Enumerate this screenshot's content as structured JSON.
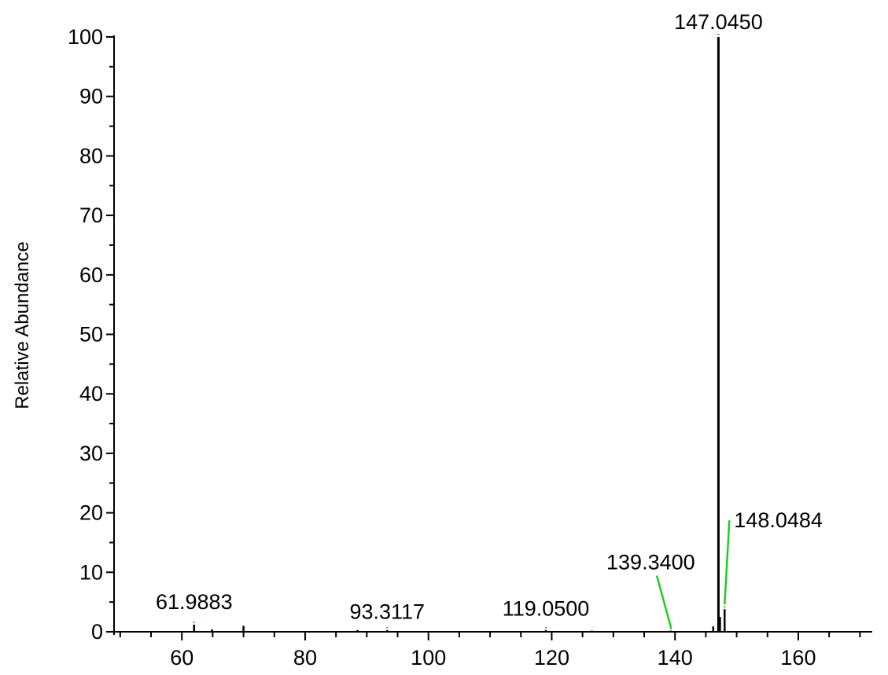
{
  "chart_data": {
    "type": "bar",
    "title": "",
    "xlabel": "",
    "ylabel": "Relative Abundance",
    "xlim": [
      49,
      172
    ],
    "ylim": [
      0,
      100
    ],
    "x_ticks": [
      60,
      80,
      100,
      120,
      140,
      160
    ],
    "y_ticks": [
      0,
      10,
      20,
      30,
      40,
      50,
      60,
      70,
      80,
      90,
      100
    ],
    "x_minor_step": 5,
    "y_minor_step": 5,
    "grid": false,
    "legend": "none",
    "series": [
      {
        "values": [
          {
            "x": 61.9883,
            "y": 1.2
          },
          {
            "x": 64.9,
            "y": 0.4
          },
          {
            "x": 70.0,
            "y": 1.0
          },
          {
            "x": 88.5,
            "y": 0.3
          },
          {
            "x": 93.3117,
            "y": 0.3
          },
          {
            "x": 119.05,
            "y": 0.3
          },
          {
            "x": 126.5,
            "y": 0.2
          },
          {
            "x": 139.34,
            "y": 0.2
          },
          {
            "x": 146.2,
            "y": 0.9
          },
          {
            "x": 147.045,
            "y": 100
          },
          {
            "x": 147.3,
            "y": 2.5
          },
          {
            "x": 148.0484,
            "y": 3.8
          }
        ]
      }
    ],
    "annotations": [
      {
        "text": "147.0450",
        "x": 147.045,
        "y": 100,
        "leader": false
      },
      {
        "text": "148.0484",
        "x": 148.0484,
        "y": 3.8,
        "leader": true
      },
      {
        "text": "139.3400",
        "x": 139.34,
        "y": 0.2,
        "leader": true
      },
      {
        "text": "119.0500",
        "x": 119.05,
        "y": 0.3,
        "leader": false
      },
      {
        "text": "93.3117",
        "x": 93.3117,
        "y": 0.3,
        "leader": false
      },
      {
        "text": "61.9883",
        "x": 61.9883,
        "y": 1.2,
        "leader": false
      }
    ]
  },
  "colors": {
    "axis": "#000000",
    "bar": "#000000",
    "leader": "#22cc22"
  }
}
